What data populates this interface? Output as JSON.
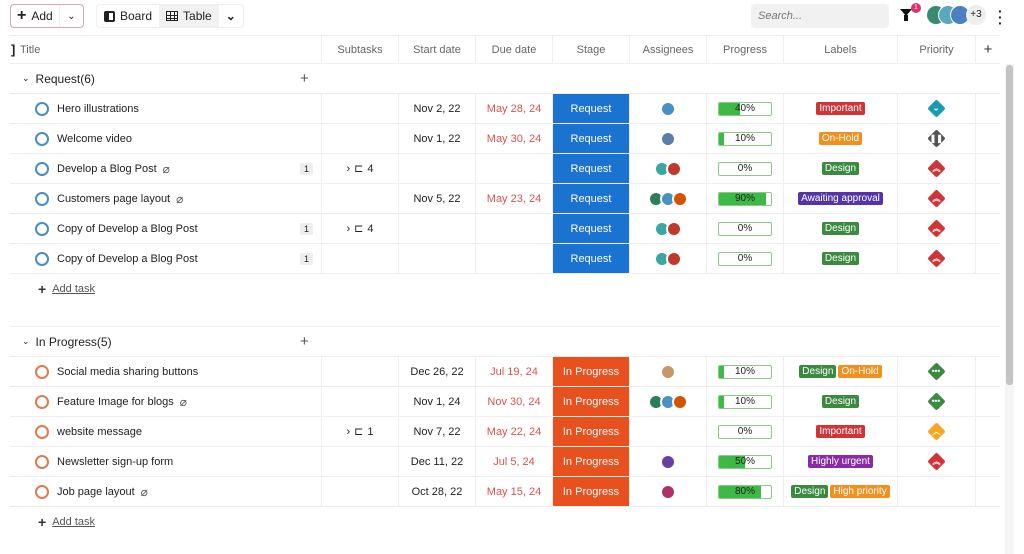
{
  "toolbar": {
    "add_label": "Add",
    "views": [
      {
        "label": "Board",
        "icon": "board-icon"
      },
      {
        "label": "Table",
        "icon": "table-icon",
        "active": true
      }
    ],
    "search_placeholder": "Search...",
    "filter_count": "1",
    "extra_members": "+3"
  },
  "columns": [
    "Title",
    "Subtasks",
    "Start date",
    "Due date",
    "Stage",
    "Assignees",
    "Progress",
    "Labels",
    "Priority"
  ],
  "add_column": "+",
  "colors": {
    "request": "#1a73d1",
    "in_progress": "#e8501e",
    "Important": "#d13438",
    "On-Hold": "#f0901e",
    "Design": "#3a8a3f",
    "Awaiting approval": "#5534a8",
    "Highly urgent": "#8a2aa8",
    "High priority": "#f0901e",
    "low": "#1a9bb0",
    "paused": "#555555",
    "high": "#d13438",
    "normal": "#3a8a3f",
    "medium": "#f5a623"
  },
  "add_task_label": "Add task",
  "groups": [
    {
      "title": "Request(6)",
      "stage_key": "request",
      "rows": [
        {
          "title": "Hero illustrations",
          "start": "Nov 2, 22",
          "due": "May 28, 24",
          "stage": "Request",
          "assignees": [
            "#4a90c2"
          ],
          "progress": 40,
          "progress_text": "40%",
          "labels": [
            "Important"
          ],
          "priority": "low"
        },
        {
          "title": "Welcome video",
          "start": "Nov 1, 22",
          "due": "May 30, 24",
          "stage": "Request",
          "assignees": [
            "#5a7ea8"
          ],
          "progress": 10,
          "progress_text": "10%",
          "labels": [
            "On-Hold"
          ],
          "priority": "paused"
        },
        {
          "title": "Develop a Blog Post",
          "attachment": true,
          "count": "1",
          "subtasks": "4",
          "stage": "Request",
          "assignees": [
            "#3aa7a0",
            "#c0392b"
          ],
          "progress": 0,
          "progress_text": "0%",
          "labels": [
            "Design"
          ],
          "priority": "high"
        },
        {
          "title": "Customers page layout",
          "attachment": true,
          "start": "Nov 5, 22",
          "due": "May 23, 24",
          "stage": "Request",
          "assignees": [
            "#2e7d5a",
            "#4a90c2",
            "#d35400"
          ],
          "progress": 90,
          "progress_text": "90%",
          "labels": [
            "Awaiting approval"
          ],
          "priority": "high"
        },
        {
          "title": "Copy of Develop a Blog Post",
          "count": "1",
          "subtasks": "4",
          "stage": "Request",
          "assignees": [
            "#3aa7a0",
            "#c0392b"
          ],
          "progress": 0,
          "progress_text": "0%",
          "labels": [
            "Design"
          ],
          "priority": "high"
        },
        {
          "title": "Copy of Develop a Blog Post",
          "count": "1",
          "stage": "Request",
          "assignees": [
            "#3aa7a0",
            "#c0392b"
          ],
          "progress": 0,
          "progress_text": "0%",
          "labels": [
            "Design"
          ],
          "priority": "high"
        }
      ]
    },
    {
      "title": "In Progress(5)",
      "stage_key": "in_progress",
      "rows": [
        {
          "title": "Social media sharing buttons",
          "start": "Dec 26, 22",
          "due": "Jul 19, 24",
          "stage": "In Progress",
          "assignees": [
            "#c9956b"
          ],
          "progress": 10,
          "progress_text": "10%",
          "labels": [
            "Design",
            "On-Hold"
          ],
          "priority": "normal"
        },
        {
          "title": "Feature Image for blogs",
          "attachment": true,
          "start": "Nov 1, 24",
          "due": "Nov 30, 24",
          "stage": "In Progress",
          "assignees": [
            "#2e7d5a",
            "#4a90c2",
            "#d35400"
          ],
          "progress": 10,
          "progress_text": "10%",
          "labels": [
            "Design"
          ],
          "priority": "normal"
        },
        {
          "title": "website message",
          "subtasks": "1",
          "start": "Nov 7, 22",
          "due": "May 22, 24",
          "stage": "In Progress",
          "assignees": [],
          "progress": 0,
          "progress_text": "0%",
          "labels": [
            "Important"
          ],
          "priority": "medium"
        },
        {
          "title": "Newsletter sign-up form",
          "start": "Dec 11, 22",
          "due": "Jul 5, 24",
          "stage": "In Progress",
          "assignees": [
            "#6a3fa0"
          ],
          "progress": 50,
          "progress_text": "50%",
          "labels": [
            "Highly urgent"
          ],
          "priority": "high"
        },
        {
          "title": "Job page layout",
          "attachment": true,
          "start": "Oct 28, 22",
          "due": "May 15, 24",
          "stage": "In Progress",
          "assignees": [
            "#b0306a"
          ],
          "progress": 80,
          "progress_text": "80%",
          "labels": [
            "Design",
            "High priority"
          ],
          "priority": ""
        }
      ]
    }
  ]
}
